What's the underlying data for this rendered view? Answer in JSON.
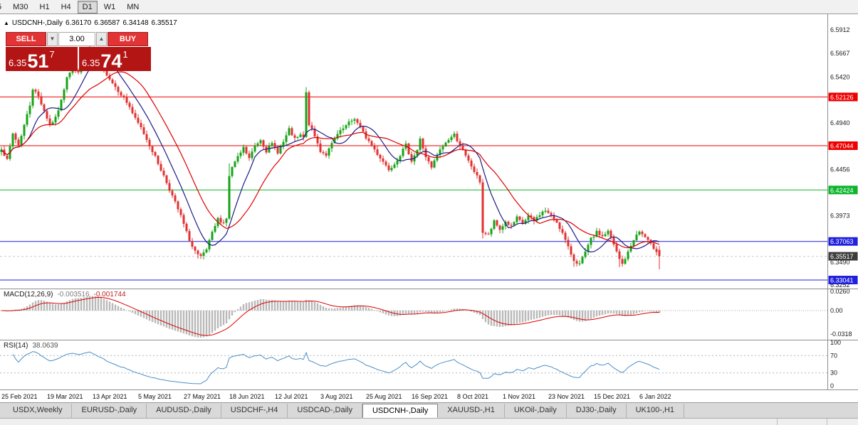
{
  "toolbar": {
    "buttons": [
      {
        "label": "5",
        "partial": true
      },
      {
        "label": "M30"
      },
      {
        "label": "H1"
      },
      {
        "label": "H4"
      },
      {
        "label": "D1",
        "active": true
      },
      {
        "label": "W1"
      },
      {
        "label": "MN"
      }
    ]
  },
  "header": {
    "collapse_arrow": "▲",
    "symbol": "USDCNH-,Daily",
    "open": "6.36170",
    "high": "6.36587",
    "low": "6.34148",
    "close": "6.35517"
  },
  "trade_panel": {
    "sell_label": "SELL",
    "buy_label": "BUY",
    "volume": "3.00",
    "spin_down": "▼",
    "spin_up": "▲",
    "bid": {
      "prefix": "6.35",
      "big": "51",
      "sup": "7"
    },
    "ask": {
      "prefix": "6.35",
      "big": "74",
      "sup": "1"
    }
  },
  "macd_panel": {
    "label": "MACD(12,26,9)",
    "main_value": "-0.003516",
    "signal_value": "-0.001744",
    "axis_labels": [
      {
        "text": "0.0260",
        "value": 0.026
      },
      {
        "text": "0.00",
        "value": 0
      },
      {
        "text": "-0.0318",
        "value": -0.0318
      }
    ]
  },
  "rsi_panel": {
    "label": "RSI(14)",
    "value": "38.0639",
    "axis_labels": [
      {
        "text": "100",
        "value": 100
      },
      {
        "text": "70",
        "value": 70
      },
      {
        "text": "30",
        "value": 30
      },
      {
        "text": "0",
        "value": 0
      }
    ],
    "levels": [
      70,
      30
    ]
  },
  "tabs": {
    "items": [
      {
        "label": "USDX,Weekly"
      },
      {
        "label": "EURUSD-,Daily"
      },
      {
        "label": "AUDUSD-,Daily"
      },
      {
        "label": "USDCHF-,H4"
      },
      {
        "label": "USDCAD-,Daily"
      },
      {
        "label": "USDCNH-,Daily",
        "active": true
      },
      {
        "label": "XAUUSD-,H1"
      },
      {
        "label": "UKOil-,Daily"
      },
      {
        "label": "DJ30-,Daily"
      },
      {
        "label": "UK100-,H1"
      }
    ]
  },
  "colors": {
    "candle_up": "#17a317",
    "candle_down": "#e03232",
    "ma_fast": "#1c1c86",
    "ma_slow": "#dd0000",
    "hline_red": "#ee0000",
    "hline_green": "#0cb52c",
    "hline_blue": "#2020dd",
    "bid_label_bg": "#3c3c3c",
    "bid_line": "#cccccc",
    "macd_hist": "#b9b9b9",
    "macd_signal": "#dd0000",
    "rsi_line": "#4a8fc7",
    "axis_text": "#1a1a1a",
    "trade_button": "#e23434",
    "trade_price_bg": "#b31414"
  },
  "chart_data": {
    "type": "candlestick",
    "title": "USDCNH-,Daily",
    "symbol": "USDCNH-",
    "timeframe": "Daily",
    "ohlc_current": {
      "open": 6.3617,
      "high": 6.36587,
      "low": 6.34148,
      "close": 6.35517
    },
    "bar_count": 232,
    "price_range": [
      6.3215,
      6.606
    ],
    "price_axis_ticks": [
      "6.5912",
      "6.5667",
      "6.5420",
      "6.4940",
      "6.4456",
      "6.3973",
      "6.3490",
      "6.3252"
    ],
    "hlines": [
      {
        "price": 6.52126,
        "label": "6.52126",
        "color": "#ee0000"
      },
      {
        "price": 6.47044,
        "label": "6.47044",
        "color": "#ee0000"
      },
      {
        "price": 6.42424,
        "label": "6.42424",
        "color": "#0cb52c"
      },
      {
        "price": 6.37063,
        "label": "6.37063",
        "color": "#2020dd"
      },
      {
        "price": 6.33041,
        "label": "6.33041",
        "color": "#2020dd"
      }
    ],
    "bid_line": {
      "price": 6.35517,
      "label": "6.35517"
    },
    "x_dates": [
      "25 Feb 2021",
      "19 Mar 2021",
      "13 Apr 2021",
      "5 May 2021",
      "27 May 2021",
      "18 Jun 2021",
      "12 Jul 2021",
      "3 Aug 2021",
      "25 Aug 2021",
      "16 Sep 2021",
      "8 Oct 2021",
      "1 Nov 2021",
      "23 Nov 2021",
      "15 Dec 2021",
      "6 Jan 2022"
    ],
    "tick_bar_interval": 16,
    "indicators": {
      "ma_fast_period": 10,
      "ma_slow_period": 21,
      "macd": [
        12,
        26,
        9
      ],
      "rsi_period": 14
    },
    "close_anchors": [
      [
        0,
        6.468
      ],
      [
        2,
        6.455
      ],
      [
        4,
        6.483
      ],
      [
        6,
        6.471
      ],
      [
        8,
        6.492
      ],
      [
        10,
        6.513
      ],
      [
        11,
        6.53
      ],
      [
        13,
        6.522
      ],
      [
        15,
        6.507
      ],
      [
        17,
        6.492
      ],
      [
        19,
        6.499
      ],
      [
        21,
        6.517
      ],
      [
        23,
        6.543
      ],
      [
        25,
        6.552
      ],
      [
        27,
        6.546
      ],
      [
        29,
        6.557
      ],
      [
        31,
        6.57
      ],
      [
        33,
        6.561
      ],
      [
        35,
        6.553
      ],
      [
        37,
        6.545
      ],
      [
        39,
        6.536
      ],
      [
        41,
        6.528
      ],
      [
        43,
        6.52
      ],
      [
        45,
        6.511
      ],
      [
        47,
        6.498
      ],
      [
        49,
        6.489
      ],
      [
        51,
        6.477
      ],
      [
        53,
        6.465
      ],
      [
        55,
        6.452
      ],
      [
        57,
        6.439
      ],
      [
        59,
        6.425
      ],
      [
        61,
        6.411
      ],
      [
        63,
        6.397
      ],
      [
        65,
        6.38
      ],
      [
        67,
        6.365
      ],
      [
        69,
        6.356
      ],
      [
        70,
        6.354
      ],
      [
        72,
        6.362
      ],
      [
        74,
        6.379
      ],
      [
        76,
        6.394
      ],
      [
        78,
        6.39
      ],
      [
        79,
        6.395
      ],
      [
        80,
        6.438
      ],
      [
        81,
        6.448
      ],
      [
        83,
        6.458
      ],
      [
        85,
        6.468
      ],
      [
        87,
        6.457
      ],
      [
        89,
        6.47
      ],
      [
        91,
        6.477
      ],
      [
        93,
        6.465
      ],
      [
        95,
        6.472
      ],
      [
        97,
        6.464
      ],
      [
        99,
        6.474
      ],
      [
        101,
        6.487
      ],
      [
        103,
        6.477
      ],
      [
        105,
        6.481
      ],
      [
        106,
        6.479
      ],
      [
        107,
        6.525
      ],
      [
        108,
        6.493
      ],
      [
        110,
        6.48
      ],
      [
        112,
        6.465
      ],
      [
        114,
        6.461
      ],
      [
        116,
        6.472
      ],
      [
        118,
        6.482
      ],
      [
        120,
        6.488
      ],
      [
        122,
        6.494
      ],
      [
        124,
        6.499
      ],
      [
        126,
        6.489
      ],
      [
        128,
        6.479
      ],
      [
        130,
        6.471
      ],
      [
        132,
        6.462
      ],
      [
        134,
        6.454
      ],
      [
        136,
        6.446
      ],
      [
        138,
        6.452
      ],
      [
        140,
        6.461
      ],
      [
        142,
        6.471
      ],
      [
        144,
        6.455
      ],
      [
        146,
        6.466
      ],
      [
        147,
        6.477
      ],
      [
        149,
        6.459
      ],
      [
        151,
        6.447
      ],
      [
        153,
        6.461
      ],
      [
        155,
        6.47
      ],
      [
        157,
        6.477
      ],
      [
        159,
        6.482
      ],
      [
        161,
        6.471
      ],
      [
        163,
        6.459
      ],
      [
        165,
        6.449
      ],
      [
        167,
        6.438
      ],
      [
        168,
        6.433
      ],
      [
        169,
        6.38
      ],
      [
        171,
        6.377
      ],
      [
        173,
        6.391
      ],
      [
        175,
        6.383
      ],
      [
        177,
        6.391
      ],
      [
        179,
        6.386
      ],
      [
        181,
        6.395
      ],
      [
        183,
        6.389
      ],
      [
        185,
        6.397
      ],
      [
        187,
        6.392
      ],
      [
        189,
        6.399
      ],
      [
        191,
        6.403
      ],
      [
        193,
        6.397
      ],
      [
        195,
        6.391
      ],
      [
        197,
        6.379
      ],
      [
        199,
        6.364
      ],
      [
        201,
        6.351
      ],
      [
        203,
        6.347
      ],
      [
        205,
        6.359
      ],
      [
        207,
        6.373
      ],
      [
        209,
        6.38
      ],
      [
        211,
        6.376
      ],
      [
        213,
        6.381
      ],
      [
        215,
        6.367
      ],
      [
        217,
        6.352
      ],
      [
        218,
        6.347
      ],
      [
        220,
        6.359
      ],
      [
        222,
        6.373
      ],
      [
        224,
        6.381
      ],
      [
        226,
        6.375
      ],
      [
        228,
        6.367
      ],
      [
        230,
        6.361
      ],
      [
        231,
        6.3552
      ]
    ],
    "wick_overrides": {
      "26": [
        6.572,
        null
      ],
      "31": [
        6.5775,
        null
      ],
      "69": [
        null,
        6.3528
      ],
      "70": [
        null,
        6.3524
      ],
      "80": [
        6.452,
        null
      ],
      "107": [
        6.5315,
        null
      ],
      "169": [
        null,
        6.3735
      ],
      "201": [
        null,
        6.3442
      ],
      "217": [
        null,
        6.3438
      ]
    }
  }
}
